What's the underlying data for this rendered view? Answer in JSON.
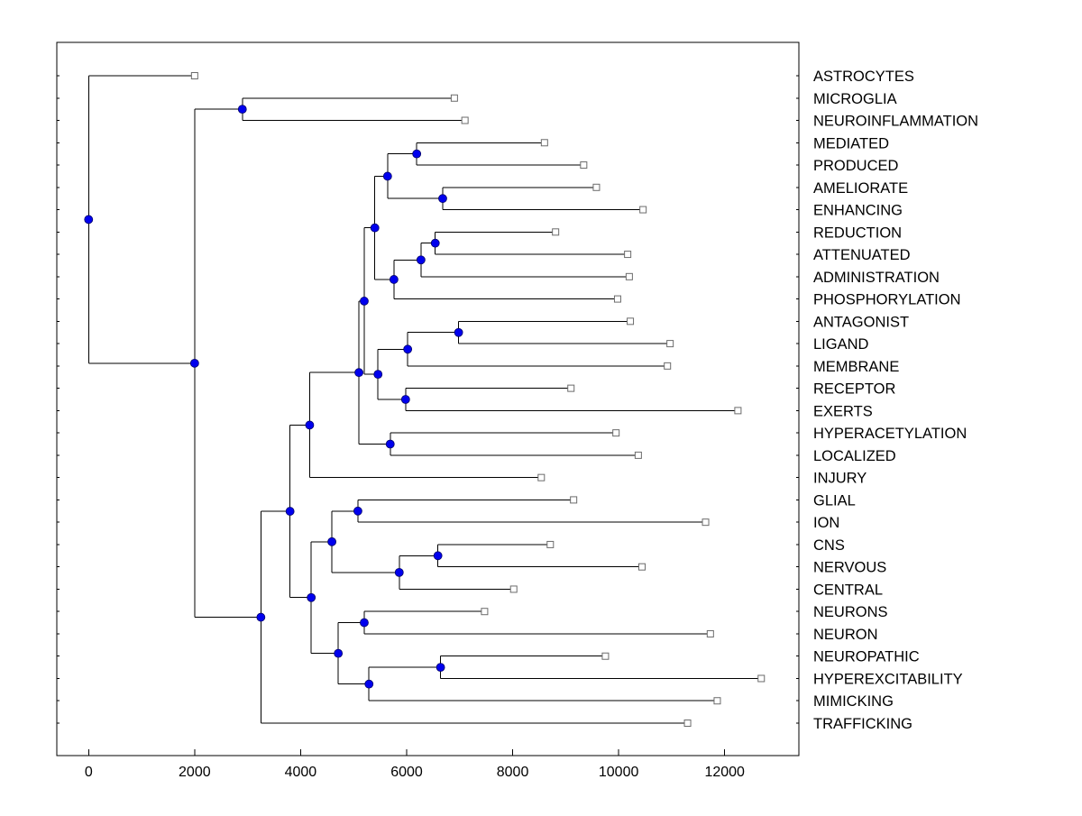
{
  "figure": {
    "background": "#ffffff"
  },
  "chart_data": {
    "type": "dendrogram",
    "orientation": "root-left-leaves-right",
    "title": "",
    "xlabel": "",
    "ylabel": "",
    "grid": false,
    "legend": null,
    "x_axis": {
      "min": -600,
      "max": 13400,
      "ticks": [
        0,
        2000,
        4000,
        6000,
        8000,
        10000,
        12000
      ],
      "tick_labels": [
        "0",
        "2000",
        "4000",
        "6000",
        "8000",
        "10000",
        "12000"
      ]
    },
    "leaf_order": [
      "ASTROCYTES",
      "MICROGLIA",
      "NEUROINFLAMMATION",
      "MEDIATED",
      "PRODUCED",
      "AMELIORATE",
      "ENHANCING",
      "REDUCTION",
      "ATTENUATED",
      "ADMINISTRATION",
      "PHOSPHORYLATION",
      "ANTAGONIST",
      "LIGAND",
      "MEMBRANE",
      "RECEPTOR",
      "EXERTS",
      "HYPERACETYLATION",
      "LOCALIZED",
      "INJURY",
      "GLIAL",
      "ION",
      "CNS",
      "NERVOUS",
      "CENTRAL",
      "NEURONS",
      "NEURON",
      "NEUROPATHIC",
      "HYPEREXCITABILITY",
      "MIMICKING",
      "TRAFFICKING"
    ],
    "linkage_tree": {
      "d": 0,
      "children": [
        {
          "leaf": "ASTROCYTES",
          "d": 2000
        },
        {
          "d": 2000,
          "children": [
            {
              "d": 2900,
              "children": [
                {
                  "leaf": "MICROGLIA",
                  "d": 6900
                },
                {
                  "leaf": "NEUROINFLAMMATION",
                  "d": 7100
                }
              ]
            },
            {
              "d": 3250,
              "children": [
                {
                  "d": 3800,
                  "children": [
                    {
                      "d": 4170,
                      "children": [
                        {
                          "d": 5100,
                          "children": [
                            {
                              "d": 5200,
                              "children": [
                                {
                                  "d": 5400,
                                  "children": [
                                    {
                                      "d": 5640,
                                      "children": [
                                        {
                                          "d": 6190,
                                          "children": [
                                            {
                                              "leaf": "MEDIATED",
                                              "d": 8600
                                            },
                                            {
                                              "leaf": "PRODUCED",
                                              "d": 9340
                                            }
                                          ]
                                        },
                                        {
                                          "d": 6680,
                                          "children": [
                                            {
                                              "leaf": "AMELIORATE",
                                              "d": 9580
                                            },
                                            {
                                              "leaf": "ENHANCING",
                                              "d": 10460
                                            }
                                          ]
                                        }
                                      ]
                                    },
                                    {
                                      "d": 5760,
                                      "children": [
                                        {
                                          "d": 6270,
                                          "children": [
                                            {
                                              "d": 6540,
                                              "children": [
                                                {
                                                  "leaf": "REDUCTION",
                                                  "d": 8810
                                                },
                                                {
                                                  "leaf": "ATTENUATED",
                                                  "d": 10170
                                                }
                                              ]
                                            },
                                            {
                                              "leaf": "ADMINISTRATION",
                                              "d": 10200
                                            }
                                          ]
                                        },
                                        {
                                          "leaf": "PHOSPHORYLATION",
                                          "d": 9980
                                        }
                                      ]
                                    }
                                  ]
                                },
                                {
                                  "d": 5460,
                                  "children": [
                                    {
                                      "d": 6020,
                                      "children": [
                                        {
                                          "d": 6980,
                                          "children": [
                                            {
                                              "leaf": "ANTAGONIST",
                                              "d": 10220
                                            },
                                            {
                                              "leaf": "LIGAND",
                                              "d": 10970
                                            }
                                          ]
                                        },
                                        {
                                          "leaf": "MEMBRANE",
                                          "d": 10920
                                        }
                                      ]
                                    },
                                    {
                                      "d": 5980,
                                      "children": [
                                        {
                                          "leaf": "RECEPTOR",
                                          "d": 9100
                                        },
                                        {
                                          "leaf": "EXERTS",
                                          "d": 12250
                                        }
                                      ]
                                    }
                                  ]
                                }
                              ]
                            },
                            {
                              "d": 5690,
                              "children": [
                                {
                                  "leaf": "HYPERACETYLATION",
                                  "d": 9950
                                },
                                {
                                  "leaf": "LOCALIZED",
                                  "d": 10370
                                }
                              ]
                            }
                          ]
                        },
                        {
                          "leaf": "INJURY",
                          "d": 8540
                        }
                      ]
                    },
                    {
                      "d": 4200,
                      "children": [
                        {
                          "d": 4590,
                          "children": [
                            {
                              "d": 5080,
                              "children": [
                                {
                                  "leaf": "GLIAL",
                                  "d": 9150
                                },
                                {
                                  "leaf": "ION",
                                  "d": 11640
                                }
                              ]
                            },
                            {
                              "d": 5860,
                              "children": [
                                {
                                  "d": 6590,
                                  "children": [
                                    {
                                      "leaf": "CNS",
                                      "d": 8710
                                    },
                                    {
                                      "leaf": "NERVOUS",
                                      "d": 10440
                                    }
                                  ]
                                },
                                {
                                  "leaf": "CENTRAL",
                                  "d": 8020
                                }
                              ]
                            }
                          ]
                        },
                        {
                          "d": 4710,
                          "children": [
                            {
                              "d": 5200,
                              "children": [
                                {
                                  "leaf": "NEURONS",
                                  "d": 7470
                                },
                                {
                                  "leaf": "NEURON",
                                  "d": 11730
                                }
                              ]
                            },
                            {
                              "d": 5290,
                              "children": [
                                {
                                  "d": 6640,
                                  "children": [
                                    {
                                      "leaf": "NEUROPATHIC",
                                      "d": 9750
                                    },
                                    {
                                      "leaf": "HYPEREXCITABILITY",
                                      "d": 12690
                                    }
                                  ]
                                },
                                {
                                  "leaf": "MIMICKING",
                                  "d": 11860
                                }
                              ]
                            }
                          ]
                        }
                      ]
                    }
                  ]
                },
                {
                  "leaf": "TRAFFICKING",
                  "d": 11300
                }
              ]
            }
          ]
        }
      ]
    },
    "styles": {
      "line_color": "#000000",
      "node_marker_fill": "#0000ee",
      "node_marker_edge": "#000066",
      "leaf_marker_fill": "#ffffff",
      "leaf_marker_edge": "#6b6b6b",
      "text_color": "#000000",
      "plot_border_color": "#000000"
    }
  }
}
